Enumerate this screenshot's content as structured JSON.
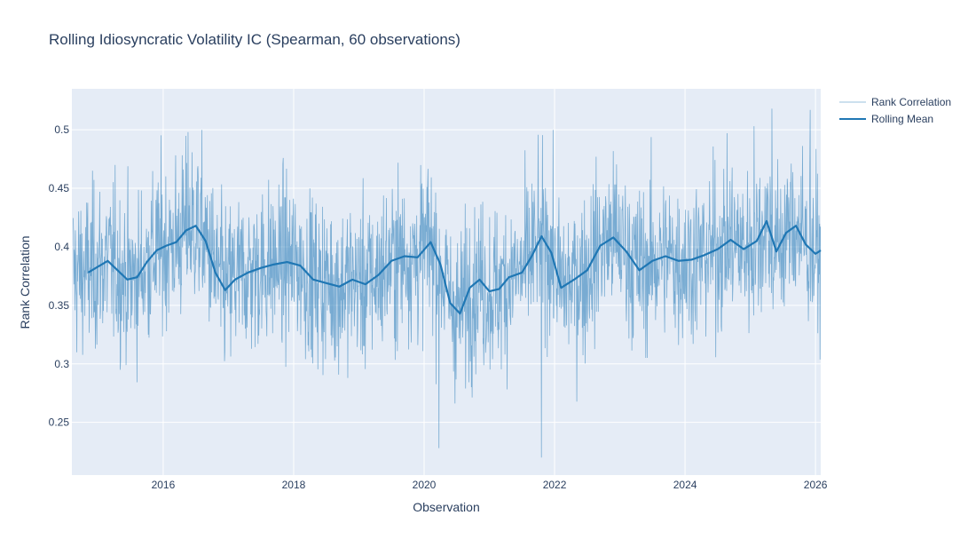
{
  "chart_data": {
    "type": "line",
    "title": "Rolling Idiosyncratic Volatility IC (Spearman, 60 observations)",
    "xlabel": "Observation",
    "ylabel": "Rank Correlation",
    "x_tick_labels": [
      "2016",
      "2018",
      "2020",
      "2022",
      "2024",
      "2026"
    ],
    "x_tick_years": [
      2016,
      2018,
      2020,
      2022,
      2024,
      2026
    ],
    "y_tick_labels": [
      "0.25",
      "0.3",
      "0.35",
      "0.4",
      "0.45",
      "0.5"
    ],
    "y_tick_values": [
      0.25,
      0.3,
      0.35,
      0.4,
      0.45,
      0.5
    ],
    "xlim": [
      2014.6,
      2026.08
    ],
    "ylim": [
      0.205,
      0.535
    ],
    "grid": true,
    "legend_position": "top-right, outside plot",
    "colors": {
      "raw": "#1f77b4",
      "mean": "#1f77b4",
      "plot_bg": "#e5ecf6",
      "grid": "#ffffff",
      "text": "#2a3f5f"
    },
    "series": [
      {
        "name": "Rank Correlation",
        "style": "thin translucent line, daily observations",
        "approx_mean": 0.385,
        "approx_std": 0.035,
        "approx_min": 0.22,
        "approx_max": 0.518,
        "notable_points": [
          {
            "x": 2016.38,
            "y": 0.498
          },
          {
            "x": 2020.23,
            "y": 0.228
          },
          {
            "x": 2021.8,
            "y": 0.22
          },
          {
            "x": 2025.06,
            "y": 0.503
          },
          {
            "x": 2025.33,
            "y": 0.518
          },
          {
            "x": 2025.92,
            "y": 0.517
          }
        ]
      },
      {
        "name": "Rolling Mean",
        "style": "thick line",
        "x": [
          2014.85,
          2015.0,
          2015.15,
          2015.3,
          2015.45,
          2015.6,
          2015.75,
          2015.9,
          2016.05,
          2016.2,
          2016.35,
          2016.5,
          2016.65,
          2016.8,
          2016.95,
          2017.1,
          2017.3,
          2017.5,
          2017.7,
          2017.9,
          2018.1,
          2018.3,
          2018.5,
          2018.7,
          2018.9,
          2019.1,
          2019.3,
          2019.5,
          2019.7,
          2019.9,
          2020.1,
          2020.25,
          2020.4,
          2020.55,
          2020.7,
          2020.85,
          2021.0,
          2021.15,
          2021.3,
          2021.5,
          2021.65,
          2021.8,
          2021.95,
          2022.1,
          2022.3,
          2022.5,
          2022.7,
          2022.9,
          2023.1,
          2023.3,
          2023.5,
          2023.7,
          2023.9,
          2024.1,
          2024.3,
          2024.5,
          2024.7,
          2024.9,
          2025.1,
          2025.25,
          2025.4,
          2025.55,
          2025.7,
          2025.85,
          2026.0,
          2026.08
        ],
        "values": [
          0.378,
          0.383,
          0.388,
          0.38,
          0.372,
          0.374,
          0.387,
          0.397,
          0.401,
          0.404,
          0.414,
          0.418,
          0.405,
          0.378,
          0.363,
          0.372,
          0.378,
          0.382,
          0.385,
          0.387,
          0.384,
          0.372,
          0.369,
          0.366,
          0.372,
          0.368,
          0.376,
          0.388,
          0.392,
          0.391,
          0.404,
          0.385,
          0.352,
          0.343,
          0.365,
          0.372,
          0.362,
          0.364,
          0.374,
          0.378,
          0.392,
          0.409,
          0.395,
          0.365,
          0.372,
          0.38,
          0.401,
          0.408,
          0.396,
          0.38,
          0.388,
          0.392,
          0.388,
          0.389,
          0.393,
          0.398,
          0.406,
          0.398,
          0.405,
          0.422,
          0.396,
          0.412,
          0.418,
          0.402,
          0.394,
          0.397
        ]
      }
    ]
  },
  "legend": {
    "items": [
      "Rank Correlation",
      "Rolling Mean"
    ]
  }
}
